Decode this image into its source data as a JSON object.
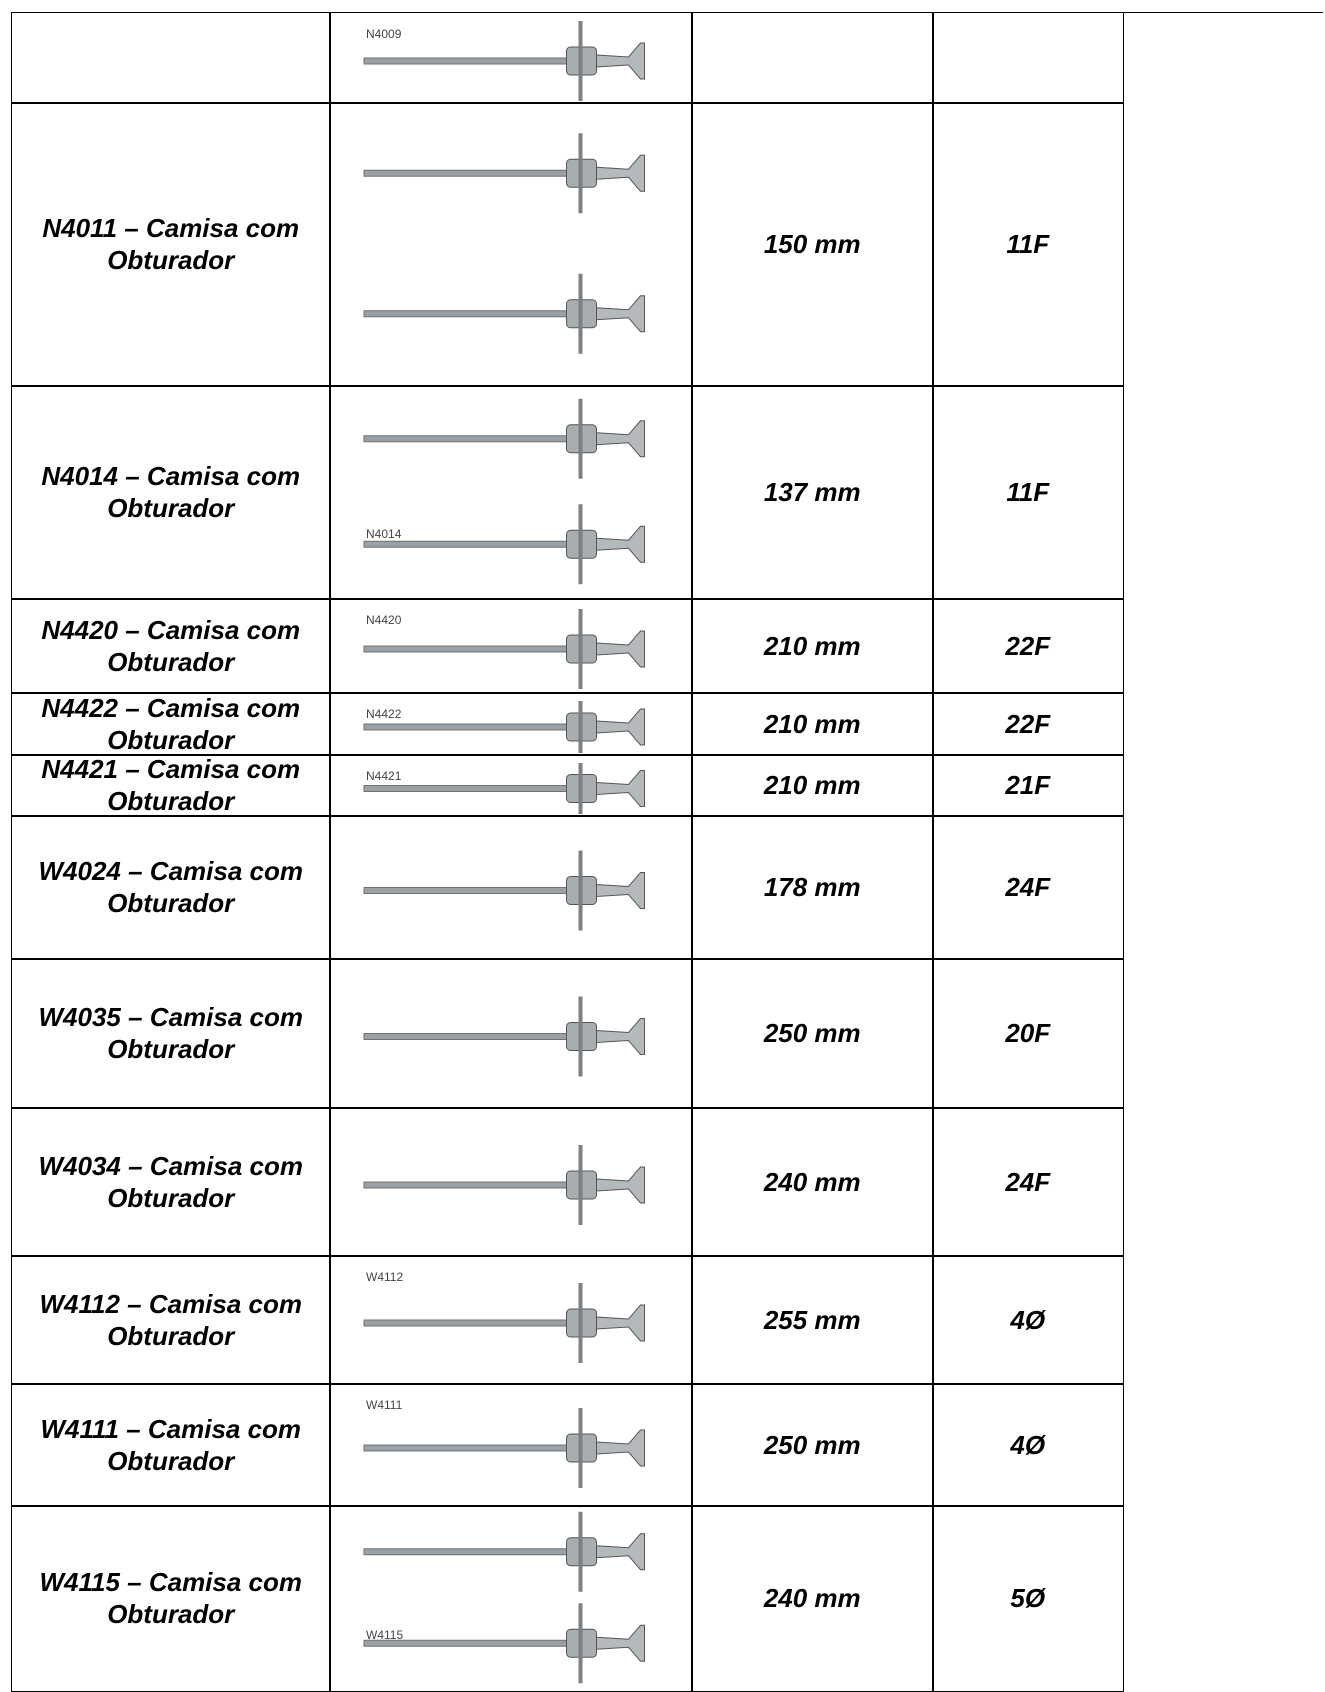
{
  "table": {
    "rows": [
      {
        "image_label": "N4009"
      },
      {
        "name": "N4011 – Camisa com Obturador",
        "length": "150 mm",
        "size": "11F"
      },
      {
        "name": "N4014 – Camisa com Obturador",
        "image_label": "N4014",
        "length": "137 mm",
        "size": "11F"
      },
      {
        "name": "N4420 – Camisa com Obturador",
        "image_label": "N4420",
        "length": "210 mm",
        "size": "22F"
      },
      {
        "name": "N4422 – Camisa com Obturador",
        "image_label": "N4422",
        "length": "210 mm",
        "size": "22F"
      },
      {
        "name": "N4421 – Camisa com Obturador",
        "image_label": "N4421",
        "length": "210 mm",
        "size": "21F"
      },
      {
        "name": "W4024 – Camisa com Obturador",
        "length": "178 mm",
        "size": "24F"
      },
      {
        "name": "W4035 – Camisa com Obturador",
        "length": "250 mm",
        "size": "20F"
      },
      {
        "name": "W4034 – Camisa com Obturador",
        "length": "240 mm",
        "size": "24F"
      },
      {
        "name": "W4112 – Camisa com Obturador",
        "image_label": "W4112",
        "length": "255 mm",
        "size": "4Ø"
      },
      {
        "name": "W4111 – Camisa com Obturador",
        "image_label": "W4111",
        "length": "250 mm",
        "size": "4Ø"
      },
      {
        "name": "W4115 – Camisa com Obturador",
        "image_label": "W4115",
        "length": "240 mm",
        "size": "5Ø"
      }
    ]
  }
}
